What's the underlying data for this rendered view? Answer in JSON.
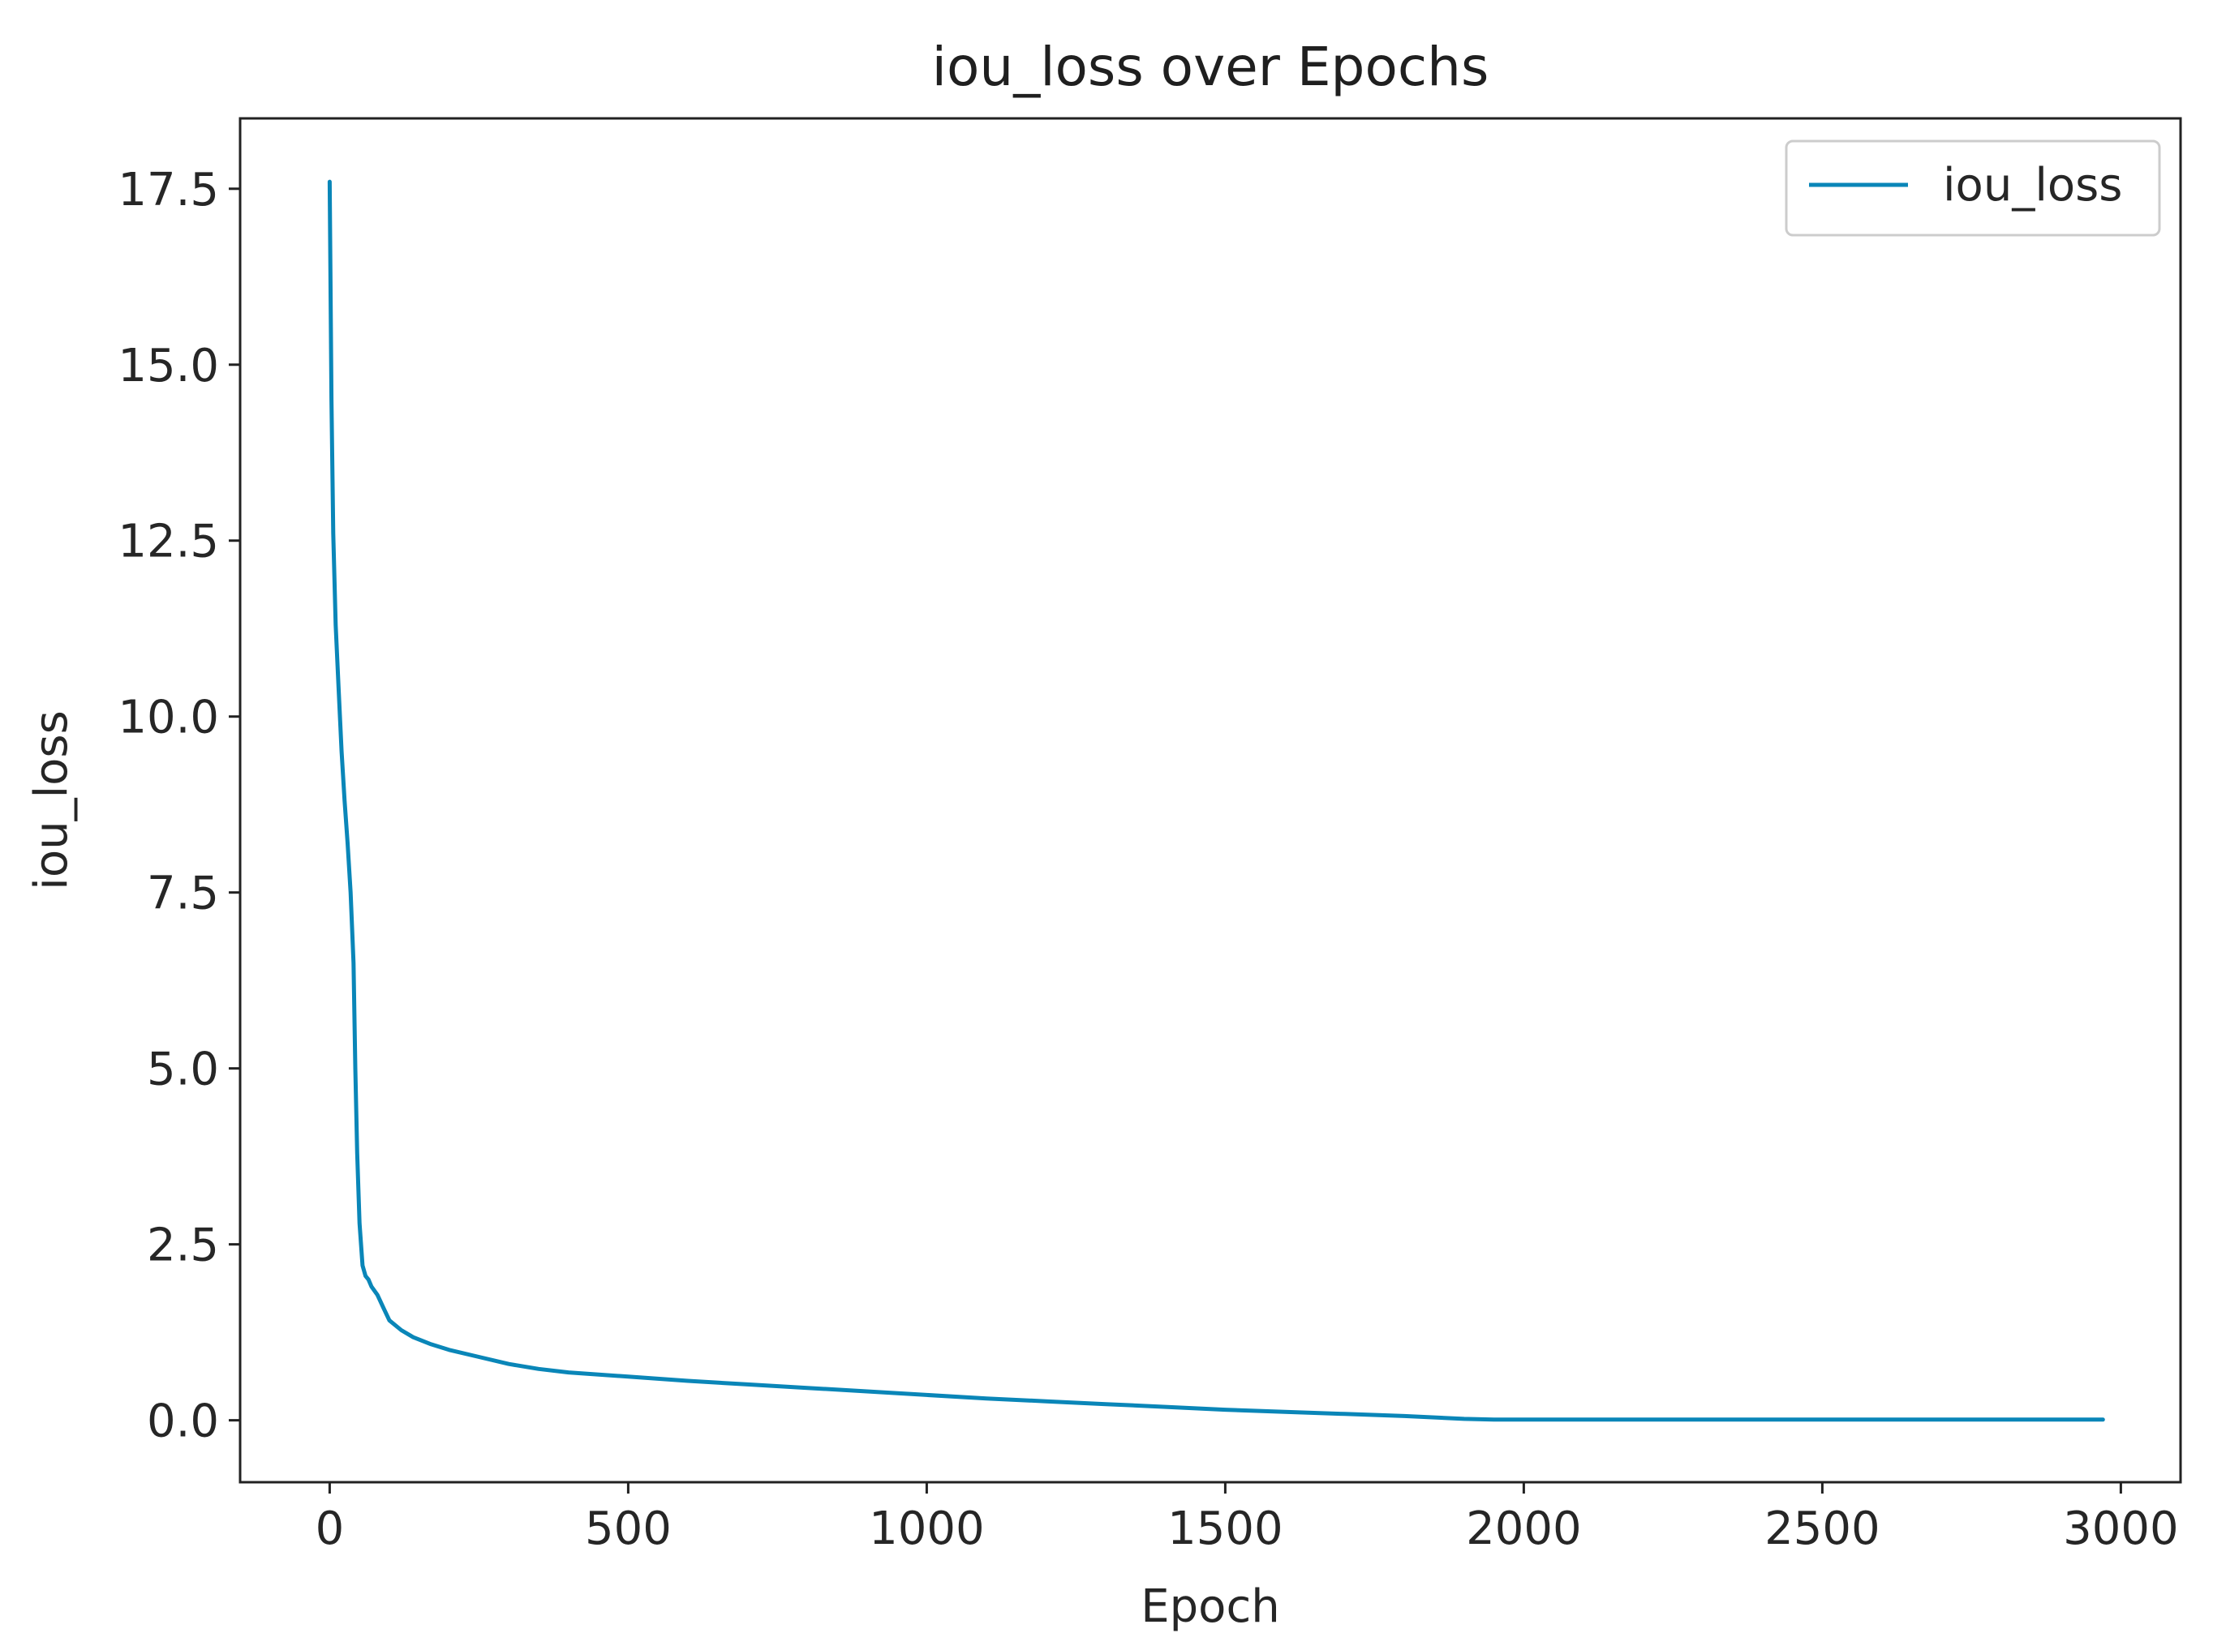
{
  "chart_data": {
    "type": "line",
    "title": "iou_loss over Epochs",
    "xlabel": "Epoch",
    "ylabel": "iou_loss",
    "xlim": [
      -150,
      3100
    ],
    "ylim": [
      -0.88,
      18.5
    ],
    "xticks": [
      0,
      500,
      1000,
      1500,
      2000,
      2500,
      3000
    ],
    "xtick_labels": [
      "0",
      "500",
      "1000",
      "1500",
      "2000",
      "2500",
      "3000"
    ],
    "yticks": [
      0.0,
      2.5,
      5.0,
      7.5,
      10.0,
      12.5,
      15.0,
      17.5
    ],
    "ytick_labels": [
      "0.0",
      "2.5",
      "5.0",
      "7.5",
      "10.0",
      "12.5",
      "15.0",
      "17.5"
    ],
    "grid": false,
    "legend_position": "top-right",
    "series": [
      {
        "name": "iou_loss",
        "color": "#0a86b8",
        "x": [
          0,
          3,
          6,
          10,
          15,
          20,
          25,
          30,
          35,
          40,
          43,
          46,
          50,
          55,
          60,
          65,
          70,
          80,
          90,
          100,
          120,
          140,
          170,
          200,
          250,
          300,
          350,
          400,
          500,
          600,
          700,
          800,
          900,
          1000,
          1100,
          1200,
          1300,
          1400,
          1500,
          1600,
          1700,
          1800,
          1900,
          1950,
          2000,
          2200,
          2400,
          2600,
          2800,
          2970
        ],
        "y": [
          17.6,
          14.5,
          12.6,
          11.3,
          10.4,
          9.5,
          8.8,
          8.2,
          7.5,
          6.5,
          5.0,
          3.8,
          2.8,
          2.2,
          2.05,
          2.0,
          1.9,
          1.78,
          1.6,
          1.42,
          1.28,
          1.18,
          1.08,
          1.0,
          0.9,
          0.8,
          0.73,
          0.68,
          0.62,
          0.56,
          0.51,
          0.46,
          0.41,
          0.36,
          0.31,
          0.27,
          0.23,
          0.19,
          0.15,
          0.12,
          0.09,
          0.06,
          0.02,
          0.01,
          0.01,
          0.01,
          0.01,
          0.01,
          0.01,
          0.01
        ]
      }
    ]
  }
}
